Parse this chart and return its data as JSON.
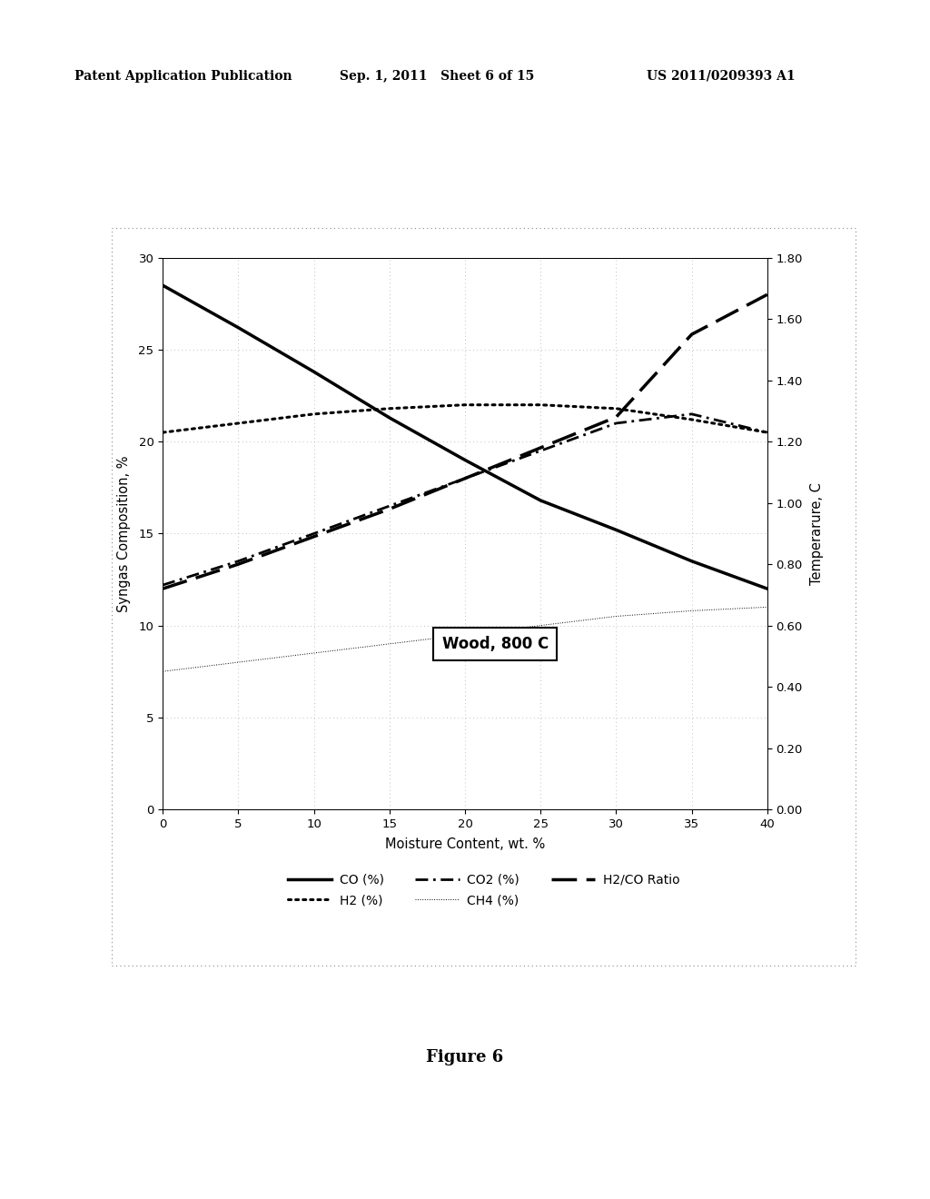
{
  "header_left": "Patent Application Publication",
  "header_middle": "Sep. 1, 2011   Sheet 6 of 15",
  "header_right": "US 2011/0209393 A1",
  "figure_label": "Figure 6",
  "annotation": "Wood, 800 C",
  "xlabel": "Moisture Content, wt. %",
  "ylabel_left": "Syngas Composition, %",
  "ylabel_right": "Temperarure, C",
  "x_ticks": [
    0,
    5,
    10,
    15,
    20,
    25,
    30,
    35,
    40
  ],
  "xlim": [
    0,
    40
  ],
  "ylim_left": [
    0,
    30
  ],
  "ylim_right": [
    0.0,
    1.8
  ],
  "y_ticks_left": [
    0,
    5,
    10,
    15,
    20,
    25,
    30
  ],
  "y_ticks_right": [
    0.0,
    0.2,
    0.4,
    0.6,
    0.8,
    1.0,
    1.2,
    1.4,
    1.6,
    1.8
  ],
  "CO_x": [
    0,
    5,
    10,
    15,
    20,
    25,
    30,
    35,
    40
  ],
  "CO_y": [
    28.5,
    26.2,
    23.8,
    21.3,
    19.0,
    16.8,
    15.2,
    13.5,
    12.0
  ],
  "H2_x": [
    0,
    5,
    10,
    15,
    20,
    25,
    30,
    35,
    40
  ],
  "H2_y": [
    20.5,
    21.0,
    21.5,
    21.8,
    22.0,
    22.0,
    21.8,
    21.2,
    20.5
  ],
  "CO2_x": [
    0,
    5,
    10,
    15,
    20,
    25,
    30,
    35,
    40
  ],
  "CO2_y": [
    12.2,
    13.5,
    15.0,
    16.5,
    18.0,
    19.5,
    21.0,
    21.5,
    20.5
  ],
  "CH4_x": [
    0,
    5,
    10,
    15,
    20,
    25,
    30,
    35,
    40
  ],
  "CH4_y": [
    7.5,
    8.0,
    8.5,
    9.0,
    9.5,
    10.0,
    10.5,
    10.8,
    11.0
  ],
  "H2CO_x": [
    0,
    5,
    10,
    15,
    20,
    25,
    30,
    35,
    40
  ],
  "H2CO_y": [
    0.72,
    0.8,
    0.89,
    0.98,
    1.08,
    1.18,
    1.28,
    1.55,
    1.68
  ],
  "background_color": "#ffffff",
  "grid_color": "#aaaaaa",
  "border_color": "#888888",
  "line_color": "#000000"
}
